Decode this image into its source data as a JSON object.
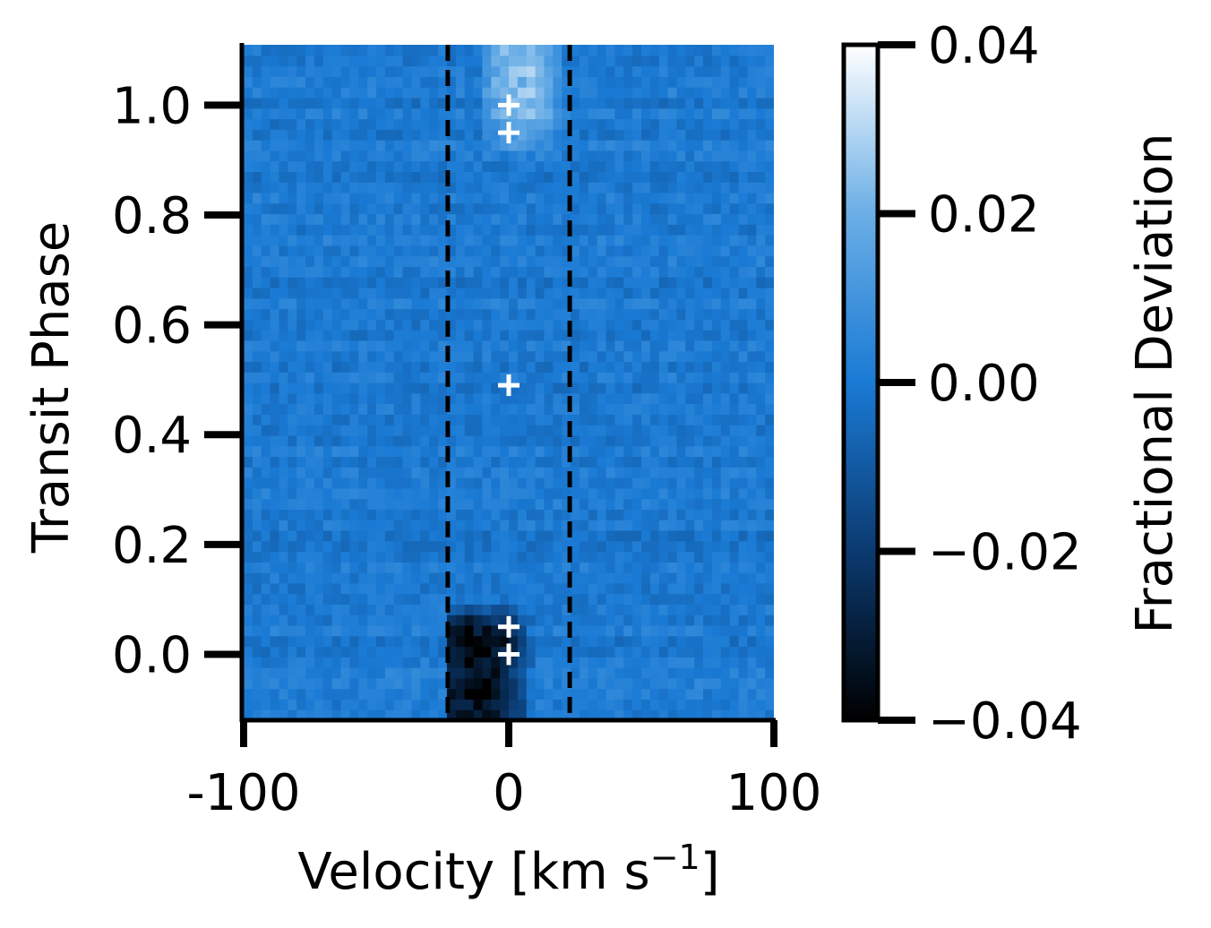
{
  "chart_data": {
    "type": "heatmap",
    "title": "",
    "xlabel": "Velocity [km s",
    "xlabel_superscript": "−1",
    "xlabel_suffix": "]",
    "ylabel": "Transit Phase",
    "xlim": [
      -100,
      100
    ],
    "ylim": [
      -0.12,
      1.11
    ],
    "x_ticks": [
      -100,
      0,
      100
    ],
    "x_tick_labels": [
      "-100",
      "0",
      "100"
    ],
    "y_ticks": [
      0.0,
      0.2,
      0.4,
      0.6,
      0.8,
      1.0
    ],
    "y_tick_labels": [
      "0.0",
      "0.2",
      "0.4",
      "0.6",
      "0.8",
      "1.0"
    ],
    "colormap": "Blues_r",
    "colorbar": {
      "label": "Fractional Deviation",
      "range": [
        -0.04,
        0.04
      ],
      "ticks": [
        -0.04,
        -0.02,
        0.0,
        0.02,
        0.04
      ],
      "tick_labels": [
        "−0.04",
        "−0.02",
        "0.00",
        "0.02",
        "0.04"
      ]
    },
    "grid": {
      "x_bins": 60,
      "y_bins": 64,
      "background_value": 0.0,
      "noise_amplitude": 0.004,
      "features": [
        {
          "kind": "absorption",
          "x_range": [
            -22,
            22
          ],
          "y_range": [
            -0.12,
            0.1
          ],
          "center_x": -12,
          "value": -0.04
        },
        {
          "kind": "emission",
          "x_range": [
            -10,
            25
          ],
          "y_range": [
            0.9,
            1.11
          ],
          "center_x": 5,
          "value": 0.025
        }
      ]
    },
    "vertical_lines": [
      {
        "x": -23,
        "style": "dashed",
        "color": "#000000"
      },
      {
        "x": 23,
        "style": "dashed",
        "color": "#000000"
      }
    ],
    "markers": [
      {
        "x": 0,
        "y": 1.0,
        "symbol": "+",
        "color": "#ffffff"
      },
      {
        "x": 0,
        "y": 0.95,
        "symbol": "+",
        "color": "#ffffff"
      },
      {
        "x": 0,
        "y": 0.49,
        "symbol": "+",
        "color": "#ffffff"
      },
      {
        "x": 0,
        "y": 0.05,
        "symbol": "+",
        "color": "#ffffff"
      },
      {
        "x": 0,
        "y": 0.0,
        "symbol": "+",
        "color": "#ffffff"
      }
    ]
  }
}
